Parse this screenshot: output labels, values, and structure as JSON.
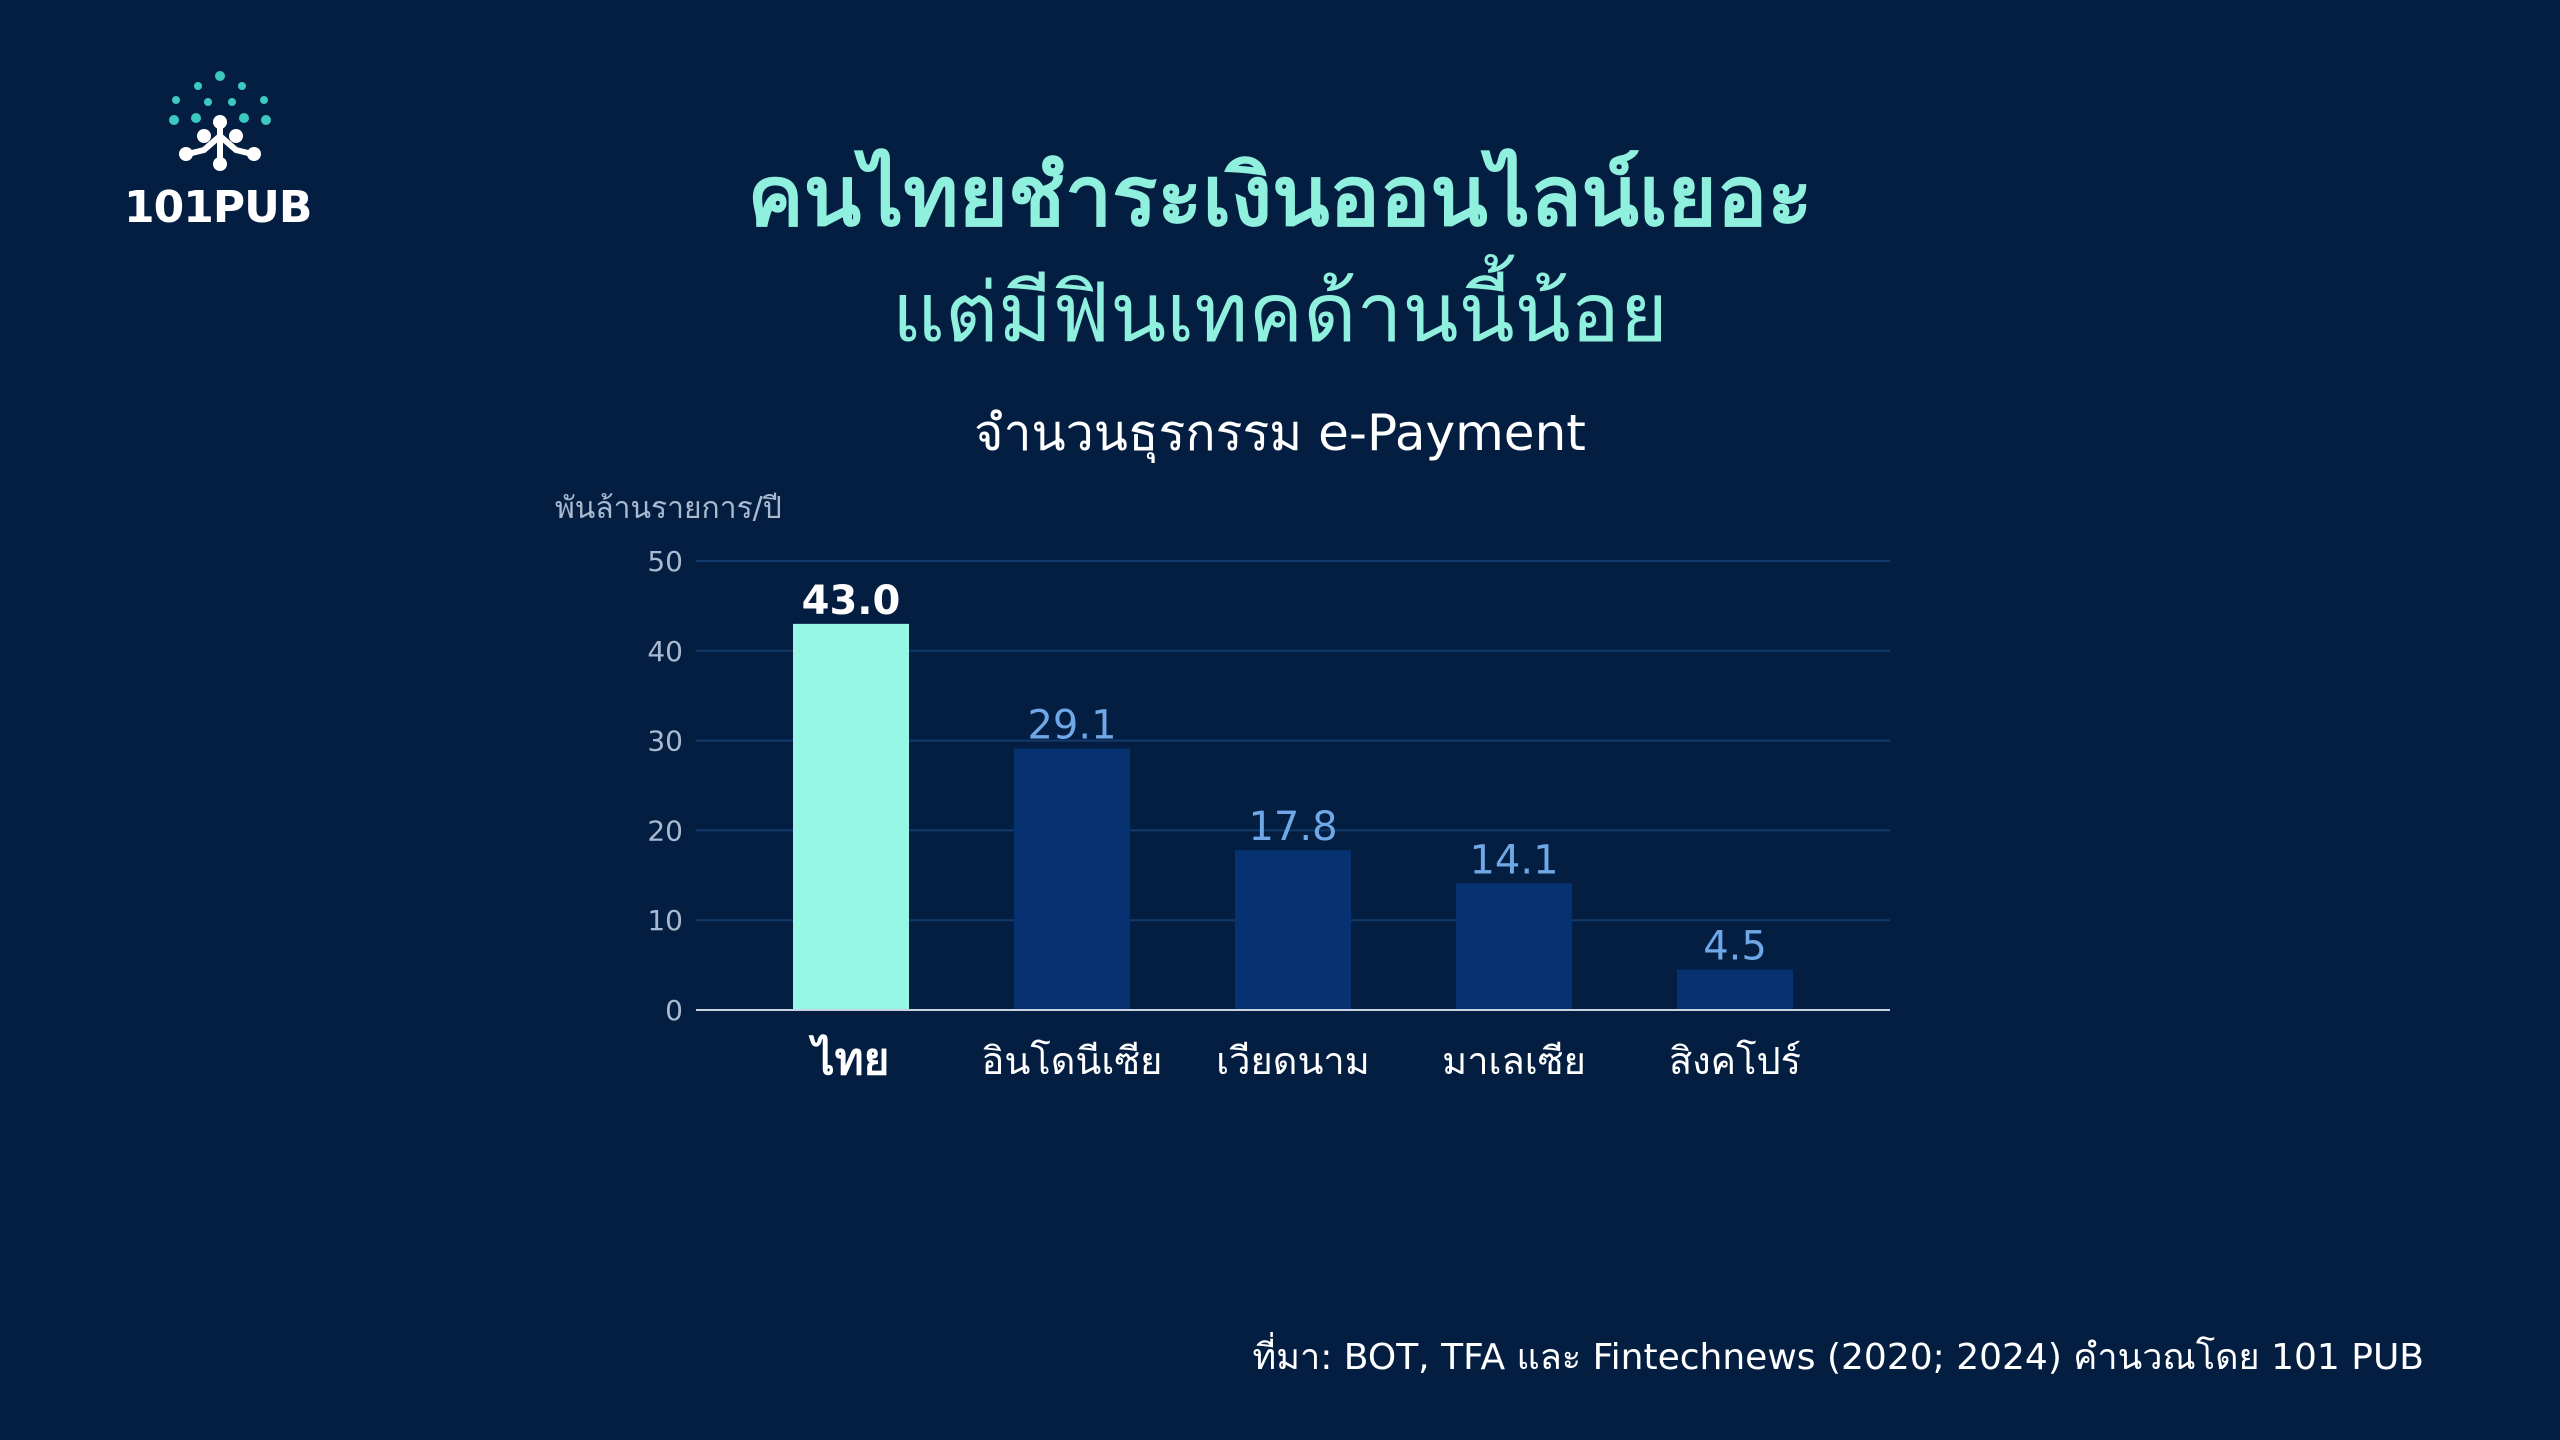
{
  "brand": {
    "logo_text": "101PUB"
  },
  "headline": {
    "line1": "คนไทยชำระเงินออนไลน์เยอะ",
    "line2": "แต่มีฟินเทคด้านนี้น้อย"
  },
  "colors": {
    "background": "#041e42",
    "highlight_bar": "#96f7e4",
    "other_bar": "#073272",
    "headline": "#8ff0de",
    "value_label": "#6fa8e6",
    "grid": "#123a6b",
    "logo_accent": "#3cc9c0"
  },
  "chart_data": {
    "type": "bar",
    "title": "จำนวนธุรกรรม e-Payment",
    "ylabel": "พันล้านรายการ/ปี",
    "xlabel": "",
    "ylim": [
      0,
      50
    ],
    "yticks": [
      "0",
      "10",
      "20",
      "30",
      "40",
      "50"
    ],
    "grid": true,
    "categories": [
      "ไทย",
      "อินโดนีเซีย",
      "เวียดนาม",
      "มาเลเซีย",
      "สิงคโปร์"
    ],
    "values": [
      43.0,
      29.1,
      17.8,
      14.1,
      4.5
    ],
    "value_labels": [
      "43.0",
      "29.1",
      "17.8",
      "14.1",
      "4.5"
    ],
    "highlight_index": 0
  },
  "source": "ที่มา: BOT, TFA และ Fintechnews (2020; 2024) คำนวณโดย 101 PUB"
}
